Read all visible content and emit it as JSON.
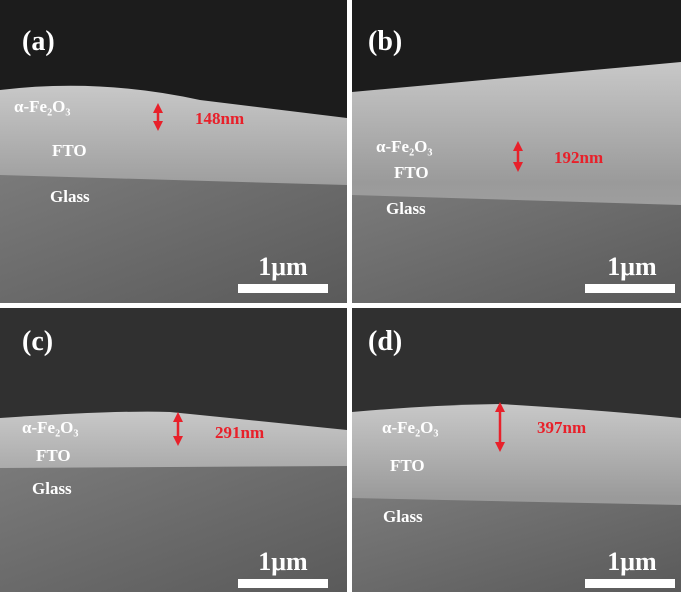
{
  "panels": [
    {
      "label": "(a)",
      "layers": [
        "α-Fe₂O₃",
        "FTO",
        "Glass"
      ],
      "thickness": "148nm",
      "scale": "1μm"
    },
    {
      "label": "(b)",
      "layers": [
        "α-Fe₂O₃",
        "FTO",
        "Glass"
      ],
      "thickness": "192nm",
      "scale": "1μm"
    },
    {
      "label": "(c)",
      "layers": [
        "α-Fe₂O₃",
        "FTO",
        "Glass"
      ],
      "thickness": "291nm",
      "scale": "1μm"
    },
    {
      "label": "(d)",
      "layers": [
        "α-Fe₂O₃",
        "FTO",
        "Glass"
      ],
      "thickness": "397nm",
      "scale": "1μm"
    }
  ]
}
